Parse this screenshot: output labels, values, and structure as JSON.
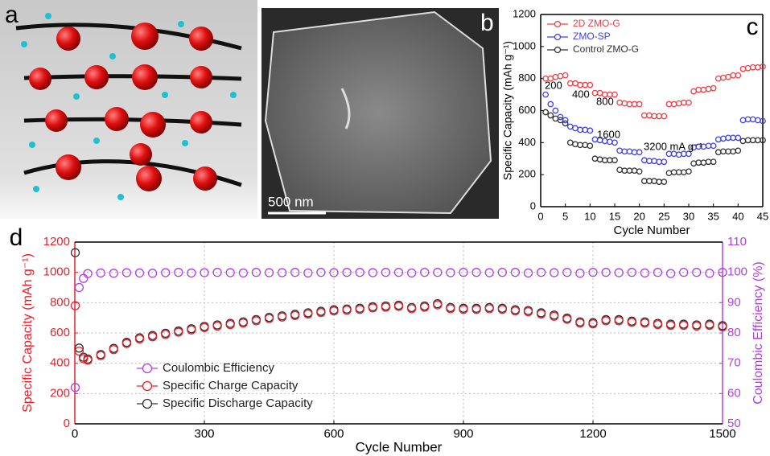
{
  "panels": [
    {
      "label": "a"
    },
    {
      "label": "b",
      "scale_bar": "500 nm"
    }
  ],
  "chart_data": [
    {
      "type": "scatter",
      "label": "c",
      "xlabel": "Cycle Number",
      "ylabel": "Specific Capacity (mAh g⁻¹)",
      "annotations": [
        "200",
        "400",
        "800",
        "1600",
        "3200 mA g⁻¹"
      ],
      "x": [
        1,
        2,
        3,
        4,
        5,
        6,
        7,
        8,
        9,
        10,
        11,
        12,
        13,
        14,
        15,
        16,
        17,
        18,
        19,
        20,
        21,
        22,
        23,
        24,
        25,
        26,
        27,
        28,
        29,
        30,
        31,
        32,
        33,
        34,
        35,
        36,
        37,
        38,
        39,
        40,
        41,
        42,
        43,
        44,
        45
      ],
      "xlim": [
        0,
        45
      ],
      "xticks": [
        0,
        5,
        10,
        15,
        20,
        25,
        30,
        35,
        40,
        45
      ],
      "ylim": [
        0,
        1200
      ],
      "yticks": [
        0,
        200,
        400,
        600,
        800,
        1000,
        1200
      ],
      "grid": false,
      "legend": "upper left",
      "series": [
        {
          "name": "2D ZMO-G",
          "color": "#e8404a",
          "values": [
            800,
            800,
            810,
            815,
            820,
            770,
            770,
            760,
            760,
            760,
            710,
            710,
            700,
            700,
            700,
            650,
            645,
            640,
            640,
            640,
            570,
            570,
            565,
            565,
            565,
            640,
            640,
            645,
            650,
            650,
            720,
            730,
            730,
            735,
            740,
            800,
            805,
            810,
            820,
            820,
            860,
            865,
            870,
            870,
            875
          ]
        },
        {
          "name": "ZMO-SP",
          "color": "#4040e0",
          "values": [
            700,
            640,
            600,
            560,
            540,
            500,
            490,
            480,
            480,
            475,
            420,
            415,
            410,
            405,
            400,
            350,
            345,
            345,
            340,
            340,
            290,
            285,
            285,
            280,
            280,
            330,
            330,
            325,
            330,
            330,
            370,
            375,
            375,
            380,
            380,
            420,
            425,
            430,
            430,
            430,
            540,
            545,
            545,
            540,
            535
          ]
        },
        {
          "name": "Control ZMO-G",
          "color": "#303030",
          "values": [
            590,
            570,
            550,
            540,
            520,
            400,
            390,
            385,
            385,
            380,
            300,
            295,
            290,
            290,
            290,
            230,
            225,
            225,
            225,
            220,
            160,
            160,
            160,
            155,
            155,
            210,
            215,
            215,
            215,
            220,
            270,
            275,
            275,
            280,
            280,
            340,
            345,
            345,
            345,
            350,
            410,
            415,
            415,
            415,
            415
          ]
        }
      ]
    },
    {
      "type": "scatter",
      "label": "d",
      "xlabel": "Cycle Number",
      "ylabel": "Specific Capacity (mAh g⁻¹)",
      "y2label": "Coulombic Efficiency (%)",
      "ylabel_color": "#e8202a",
      "y2label_color": "#b040e0",
      "x": [
        1,
        10,
        20,
        30,
        60,
        90,
        120,
        150,
        180,
        210,
        240,
        270,
        300,
        330,
        360,
        390,
        420,
        450,
        480,
        510,
        540,
        570,
        600,
        630,
        660,
        690,
        720,
        750,
        780,
        810,
        840,
        870,
        900,
        930,
        960,
        990,
        1020,
        1050,
        1080,
        1110,
        1140,
        1170,
        1200,
        1230,
        1260,
        1290,
        1320,
        1350,
        1380,
        1410,
        1440,
        1470,
        1500
      ],
      "xlim": [
        0,
        1500
      ],
      "xticks": [
        0,
        300,
        600,
        900,
        1200,
        1500
      ],
      "ylim": [
        0,
        1200
      ],
      "yticks": [
        0,
        200,
        400,
        600,
        800,
        1000,
        1200
      ],
      "y2lim": [
        50,
        110
      ],
      "y2ticks": [
        50,
        60,
        70,
        80,
        90,
        100,
        110
      ],
      "grid": true,
      "legend": "lower left",
      "series": [
        {
          "name": "Coulombic Efficiency",
          "color": "#b040e0",
          "axis": "y2",
          "values": [
            62,
            95,
            98,
            99.6,
            99.8,
            99.7,
            99.9,
            99.8,
            99.7,
            99.9,
            100,
            99.8,
            99.9,
            100,
            99.9,
            99.8,
            100,
            99.9,
            99.9,
            100,
            99.8,
            100,
            99.9,
            100,
            100,
            99.9,
            100,
            100,
            99.8,
            100,
            100,
            99.9,
            100,
            100,
            99.9,
            100,
            100,
            99.8,
            100,
            99.9,
            100,
            99.7,
            100,
            100,
            99.9,
            100,
            99.8,
            100,
            99.6,
            100,
            100,
            99.7,
            100
          ]
        },
        {
          "name": "Specific Charge Capacity",
          "color": "#e8202a",
          "values": [
            780,
            480,
            430,
            420,
            450,
            490,
            530,
            560,
            575,
            590,
            605,
            620,
            635,
            645,
            655,
            665,
            680,
            695,
            705,
            715,
            725,
            735,
            745,
            750,
            755,
            765,
            770,
            775,
            760,
            770,
            785,
            760,
            755,
            755,
            760,
            755,
            745,
            740,
            725,
            710,
            690,
            665,
            660,
            680,
            680,
            670,
            665,
            655,
            650,
            650,
            645,
            650,
            640
          ]
        },
        {
          "name": "Specific Discharge Capacity",
          "color": "#303030",
          "values": [
            1130,
            500,
            440,
            428,
            458,
            498,
            538,
            568,
            583,
            598,
            613,
            628,
            643,
            653,
            663,
            673,
            688,
            703,
            713,
            723,
            733,
            743,
            753,
            758,
            763,
            773,
            778,
            783,
            768,
            778,
            793,
            768,
            763,
            763,
            768,
            763,
            753,
            748,
            733,
            718,
            698,
            673,
            668,
            688,
            688,
            678,
            673,
            663,
            658,
            658,
            653,
            658,
            648
          ]
        }
      ]
    }
  ]
}
